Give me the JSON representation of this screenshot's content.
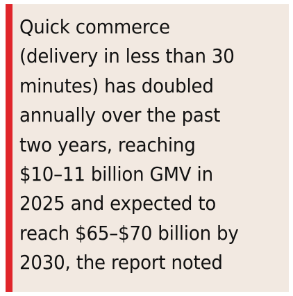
{
  "callout": {
    "accent_color": "#e0262b",
    "background_color": "#f2e9e1",
    "lines": [
      "Quick commerce",
      "(delivery in less than 30",
      "minutes) has doubled",
      "annually over the past",
      "two years, reaching",
      "$10–11 billion GMV in",
      "2025 and expected to",
      "reach $65–$70 billion by",
      "2030, the report noted"
    ]
  }
}
